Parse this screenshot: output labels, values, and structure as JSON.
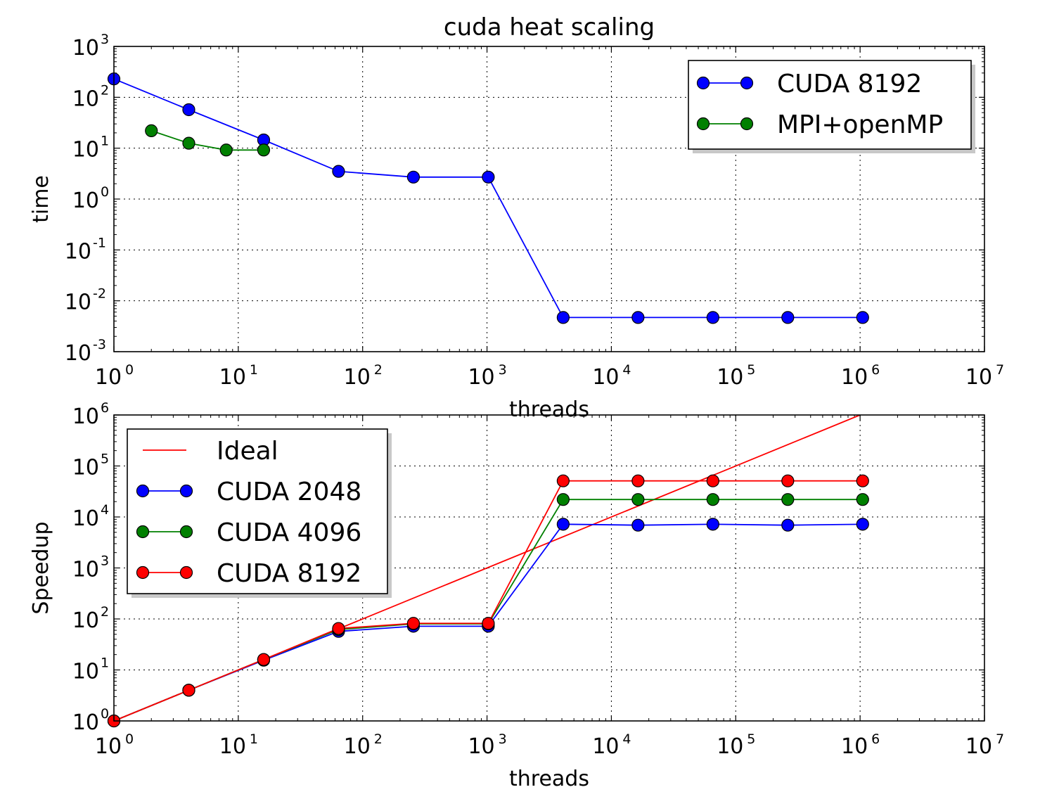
{
  "chart_data": [
    {
      "type": "line",
      "title": "cuda heat scaling",
      "xlabel": "threads",
      "ylabel": "time",
      "xscale": "log",
      "yscale": "log",
      "xlim": [
        1,
        10000000
      ],
      "ylim": [
        0.001,
        1000
      ],
      "grid": true,
      "legend_position": "top-right",
      "x_ticks": [
        {
          "base": "10",
          "exp": "0"
        },
        {
          "base": "10",
          "exp": "1"
        },
        {
          "base": "10",
          "exp": "2"
        },
        {
          "base": "10",
          "exp": "3"
        },
        {
          "base": "10",
          "exp": "4"
        },
        {
          "base": "10",
          "exp": "5"
        },
        {
          "base": "10",
          "exp": "6"
        },
        {
          "base": "10",
          "exp": "7"
        }
      ],
      "y_ticks": [
        {
          "base": "10",
          "exp": "-3"
        },
        {
          "base": "10",
          "exp": "-2"
        },
        {
          "base": "10",
          "exp": "-1"
        },
        {
          "base": "10",
          "exp": "0"
        },
        {
          "base": "10",
          "exp": "1"
        },
        {
          "base": "10",
          "exp": "2"
        },
        {
          "base": "10",
          "exp": "3"
        }
      ],
      "series": [
        {
          "name": "CUDA 8192",
          "color": "#0000ff",
          "markers": true,
          "x": [
            1,
            4,
            16,
            64,
            256,
            1024,
            4096,
            16384,
            65536,
            262144,
            1048576
          ],
          "y": [
            230,
            57,
            14.5,
            3.5,
            2.7,
            2.7,
            0.0047,
            0.0047,
            0.0047,
            0.0047,
            0.0047
          ]
        },
        {
          "name": "MPI+openMP",
          "color": "#008000",
          "markers": true,
          "x": [
            2,
            4,
            8,
            16
          ],
          "y": [
            22,
            12.5,
            9.2,
            9.2
          ]
        }
      ]
    },
    {
      "type": "line",
      "title": "",
      "xlabel": "threads",
      "ylabel": "Speedup",
      "xscale": "log",
      "yscale": "log",
      "xlim": [
        1,
        10000000
      ],
      "ylim": [
        1,
        1000000
      ],
      "grid": true,
      "legend_position": "top-left",
      "x_ticks": [
        {
          "base": "10",
          "exp": "0"
        },
        {
          "base": "10",
          "exp": "1"
        },
        {
          "base": "10",
          "exp": "2"
        },
        {
          "base": "10",
          "exp": "3"
        },
        {
          "base": "10",
          "exp": "4"
        },
        {
          "base": "10",
          "exp": "5"
        },
        {
          "base": "10",
          "exp": "6"
        },
        {
          "base": "10",
          "exp": "7"
        }
      ],
      "y_ticks": [
        {
          "base": "10",
          "exp": "0"
        },
        {
          "base": "10",
          "exp": "1"
        },
        {
          "base": "10",
          "exp": "2"
        },
        {
          "base": "10",
          "exp": "3"
        },
        {
          "base": "10",
          "exp": "4"
        },
        {
          "base": "10",
          "exp": "5"
        },
        {
          "base": "10",
          "exp": "6"
        }
      ],
      "series": [
        {
          "name": "Ideal",
          "color": "#ff0000",
          "markers": false,
          "x": [
            1,
            1000000
          ],
          "y": [
            1,
            1000000
          ]
        },
        {
          "name": "CUDA 2048",
          "color": "#0000ff",
          "markers": true,
          "x": [
            1,
            4,
            16,
            64,
            256,
            1024,
            4096,
            16384,
            65536,
            262144,
            1048576
          ],
          "y": [
            1,
            4,
            15.5,
            57,
            72,
            72,
            7200,
            6900,
            7200,
            6900,
            7200
          ]
        },
        {
          "name": "CUDA 4096",
          "color": "#008000",
          "markers": true,
          "x": [
            1,
            4,
            16,
            64,
            256,
            1024,
            4096,
            16384,
            65536,
            262144,
            1048576
          ],
          "y": [
            1,
            4,
            16,
            62,
            80,
            80,
            22000,
            22000,
            22000,
            22000,
            22000
          ]
        },
        {
          "name": "CUDA 8192",
          "color": "#ff0000",
          "markers": true,
          "x": [
            1,
            4,
            16,
            64,
            256,
            1024,
            4096,
            16384,
            65536,
            262144,
            1048576
          ],
          "y": [
            1,
            4,
            16,
            65,
            82,
            82,
            51000,
            51000,
            51000,
            51000,
            51000
          ]
        }
      ]
    }
  ]
}
